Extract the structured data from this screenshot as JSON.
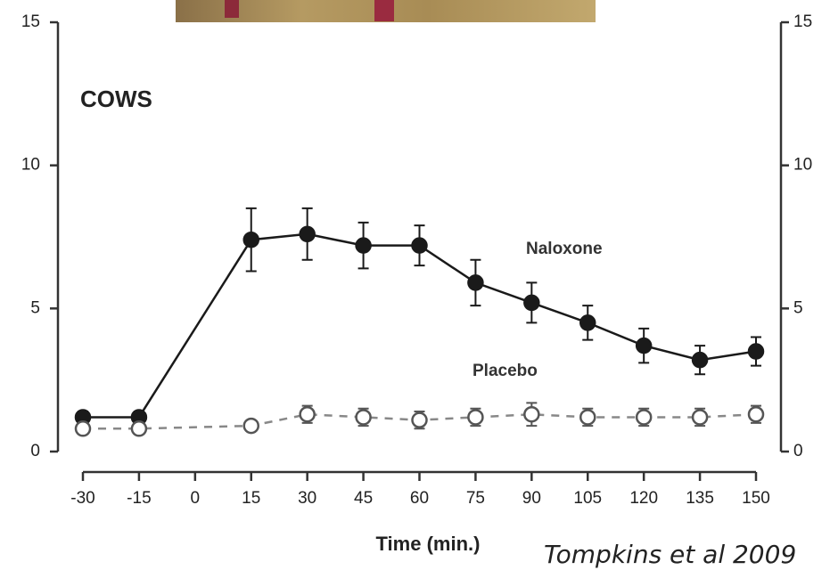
{
  "chart_data": {
    "type": "line",
    "title": "COWS",
    "x_label": "Time (min.)",
    "caption": "Tompkins et al 2009",
    "x": [
      -30,
      -15,
      15,
      30,
      45,
      60,
      75,
      90,
      105,
      120,
      135,
      150
    ],
    "series": [
      {
        "name": "Naloxone",
        "color": "#1a1a1a",
        "style": "solid",
        "marker": "filled",
        "values": [
          1.2,
          1.2,
          7.4,
          7.6,
          7.2,
          7.2,
          5.9,
          5.2,
          4.5,
          3.7,
          3.2,
          3.5
        ],
        "errors": [
          0.2,
          0.2,
          1.1,
          0.9,
          0.8,
          0.7,
          0.8,
          0.7,
          0.6,
          0.6,
          0.5,
          0.5
        ]
      },
      {
        "name": "Placebo",
        "color": "#555555",
        "style": "dashed",
        "marker": "open",
        "values": [
          0.8,
          0.8,
          0.9,
          1.3,
          1.2,
          1.1,
          1.2,
          1.3,
          1.2,
          1.2,
          1.2,
          1.3
        ],
        "errors": [
          null,
          null,
          null,
          0.3,
          0.3,
          0.3,
          0.3,
          0.4,
          0.3,
          0.3,
          0.3,
          0.3
        ]
      }
    ],
    "xlim": [
      -30,
      150
    ],
    "xticks": [
      -30,
      -15,
      0,
      15,
      30,
      45,
      60,
      75,
      90,
      105,
      120,
      135,
      150
    ],
    "ylim": [
      0,
      15
    ],
    "yticks": [
      0,
      5,
      10,
      15
    ],
    "y2lim": [
      0,
      15
    ],
    "y2ticks": [
      0,
      5,
      10,
      15
    ]
  }
}
